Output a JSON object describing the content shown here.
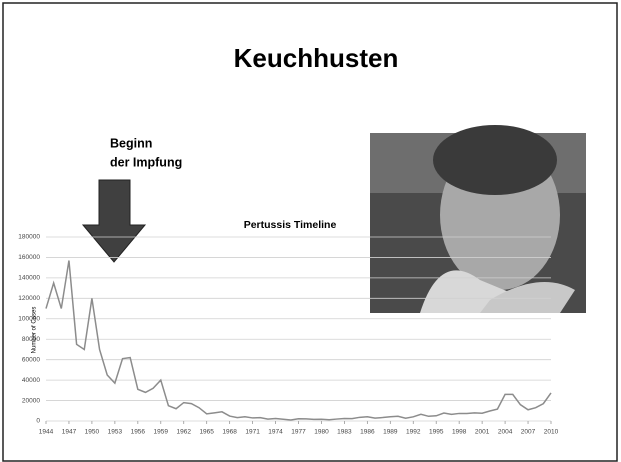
{
  "slide": {
    "title": "Keuchhusten",
    "annotation": [
      "Beginn",
      "der Impfung"
    ]
  },
  "chart_data": {
    "type": "line",
    "title": "Pertussis Timeline",
    "y_label": "Number of Cases",
    "x": [
      1944,
      1945,
      1946,
      1947,
      1948,
      1949,
      1950,
      1951,
      1952,
      1953,
      1954,
      1955,
      1956,
      1957,
      1958,
      1959,
      1960,
      1961,
      1962,
      1963,
      1964,
      1965,
      1966,
      1967,
      1968,
      1969,
      1970,
      1971,
      1972,
      1973,
      1974,
      1975,
      1976,
      1977,
      1978,
      1979,
      1980,
      1981,
      1982,
      1983,
      1984,
      1985,
      1986,
      1987,
      1988,
      1989,
      1990,
      1991,
      1992,
      1993,
      1994,
      1995,
      1996,
      1997,
      1998,
      1999,
      2000,
      2001,
      2002,
      2003,
      2004,
      2005,
      2006,
      2007,
      2008,
      2009,
      2010
    ],
    "values": [
      110000,
      135000,
      110000,
      157000,
      75000,
      70000,
      120000,
      70000,
      45000,
      37000,
      61000,
      62000,
      31000,
      28000,
      32000,
      40000,
      15000,
      12000,
      18000,
      17000,
      13000,
      7000,
      8000,
      9000,
      4800,
      3300,
      4200,
      3000,
      3300,
      1800,
      2400,
      1700,
      1000,
      2200,
      2100,
      1600,
      1700,
      1200,
      1900,
      2500,
      2300,
      3600,
      4200,
      2800,
      3400,
      4200,
      4600,
      2700,
      4100,
      6600,
      4600,
      5100,
      7800,
      6500,
      7400,
      7300,
      7900,
      7600,
      9800,
      11600,
      26000,
      26000,
      16000,
      11000,
      13000,
      17000,
      27500
    ],
    "color": "#8c8c8c",
    "xlim": [
      1944,
      2010
    ],
    "xticks": [
      1944,
      1947,
      1950,
      1953,
      1956,
      1959,
      1962,
      1965,
      1968,
      1971,
      1974,
      1977,
      1980,
      1983,
      1986,
      1989,
      1992,
      1995,
      1998,
      2001,
      2004,
      2007,
      2010
    ],
    "ylim": [
      0,
      180000
    ],
    "yticks": [
      0,
      20000,
      40000,
      60000,
      80000,
      100000,
      120000,
      140000,
      160000,
      180000
    ],
    "grid": true
  }
}
